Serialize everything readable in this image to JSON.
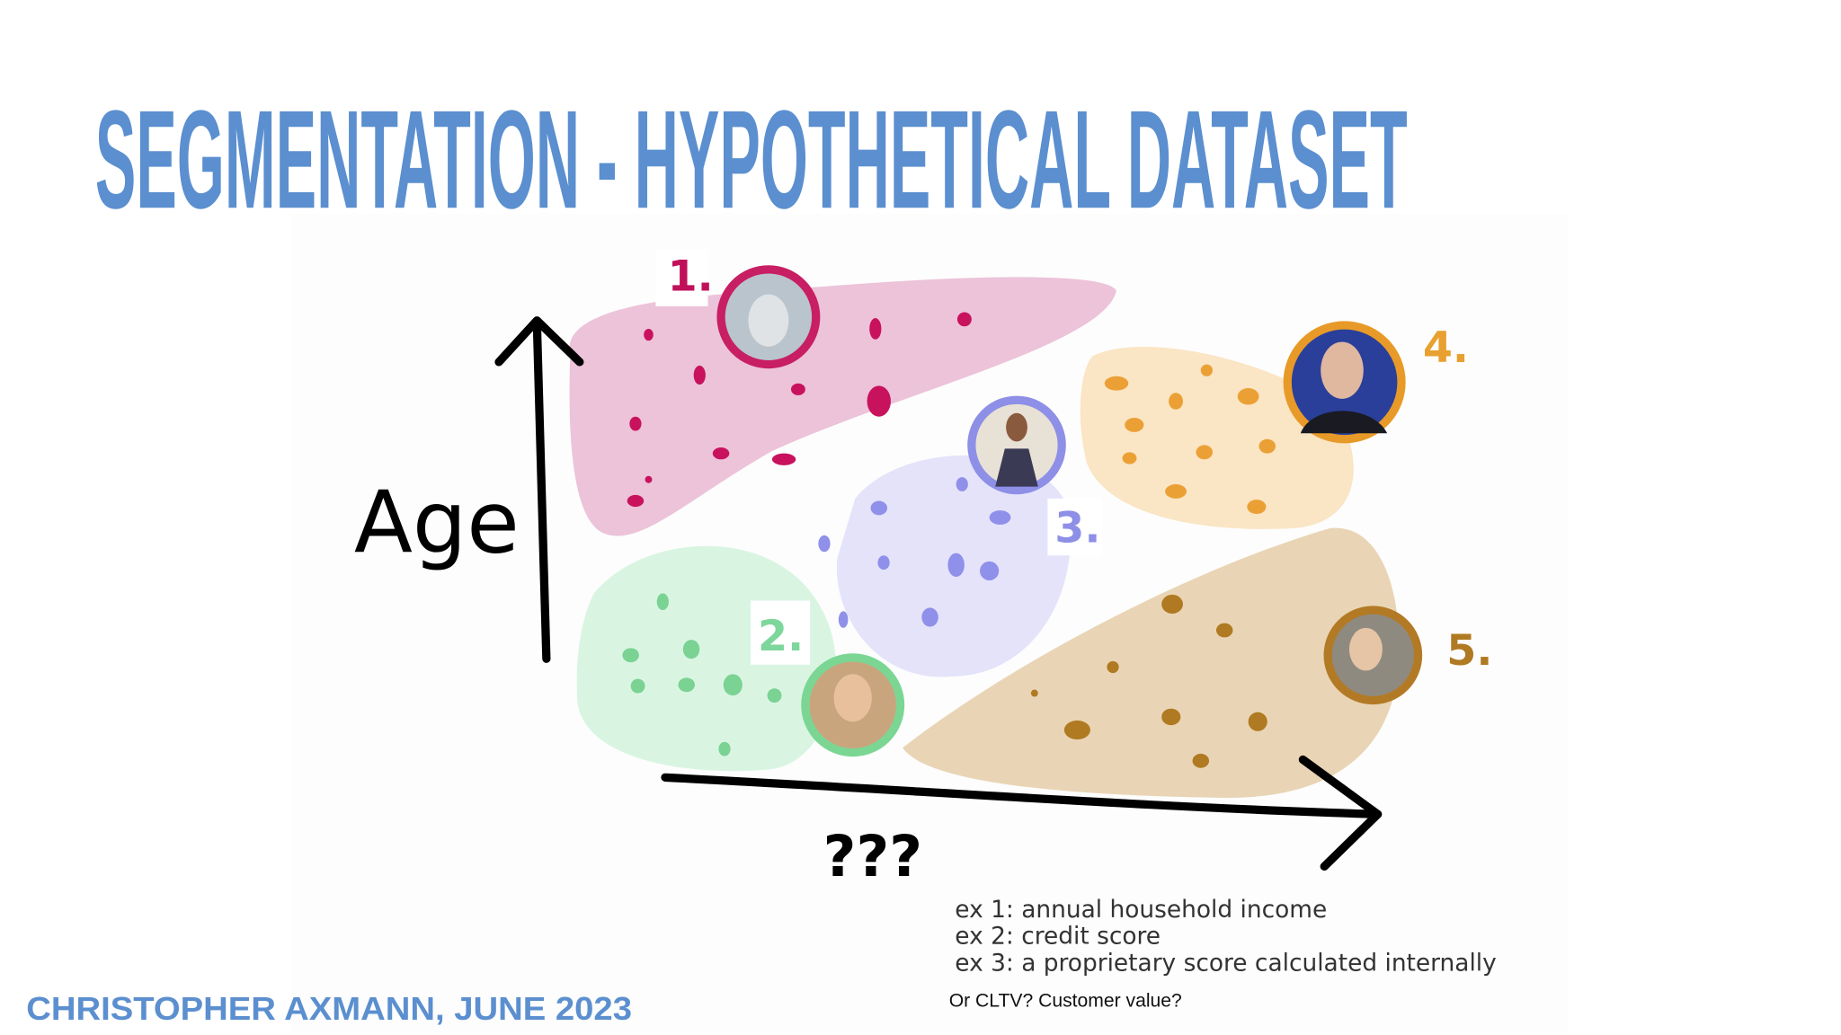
{
  "title": "SEGMENTATION - HYPOTHETICAL DATASET",
  "segments": [
    {
      "label": "1."
    },
    {
      "label": "2."
    },
    {
      "label": "3."
    },
    {
      "label": "4."
    },
    {
      "label": "5."
    }
  ],
  "axes": {
    "y_label": "Age",
    "x_label": "???"
  },
  "examples": [
    "ex 1: annual household income",
    "ex 2: credit score",
    "ex 3: a proprietary score calculated internally"
  ],
  "note": "Or CLTV?  Customer value?",
  "footer": "CHRISTOPHER AXMANN, JUNE 2023"
}
